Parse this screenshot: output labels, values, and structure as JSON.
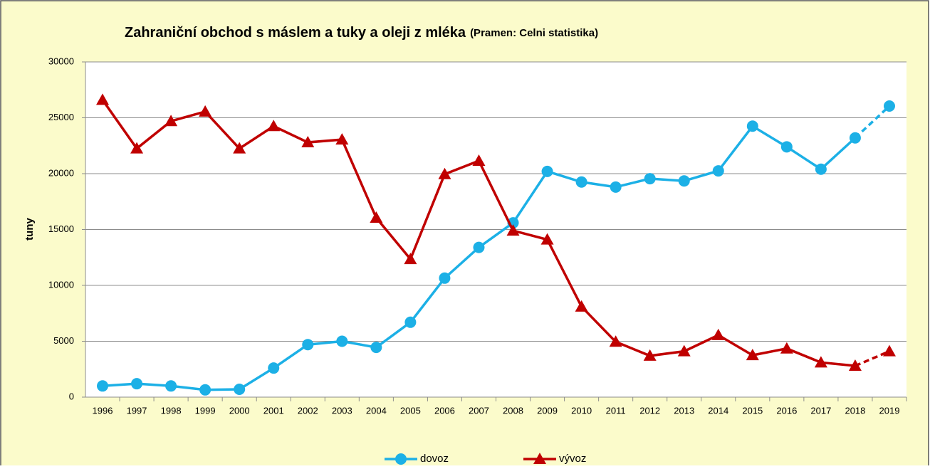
{
  "chart_data": {
    "type": "line",
    "title": "Zahraniční obchod s máslem a tuky a oleji z mléka",
    "subtitle": "(Pramen: Celni statistika)",
    "y_label": "tuny",
    "categories": [
      "1996",
      "1997",
      "1998",
      "1999",
      "2000",
      "2001",
      "2002",
      "2003",
      "2004",
      "2005",
      "2006",
      "2007",
      "2008",
      "2009",
      "2010",
      "2011",
      "2012",
      "2013",
      "2014",
      "2015",
      "2016",
      "2017",
      "2018",
      "2019"
    ],
    "series": [
      {
        "name": "dovoz",
        "color": "#1cb0e6",
        "marker": "circle",
        "values": [
          1000,
          1200,
          1000,
          650,
          700,
          2600,
          4700,
          5000,
          4450,
          6700,
          10650,
          13400,
          15600,
          20200,
          19250,
          18800,
          19550,
          19350,
          20250,
          24250,
          22400,
          20400,
          23200,
          26050
        ]
      },
      {
        "name": "vývoz",
        "color": "#c00000",
        "marker": "triangle",
        "values": [
          26600,
          22250,
          24700,
          25550,
          22250,
          24250,
          22800,
          23050,
          16050,
          12350,
          19950,
          21150,
          14900,
          14100,
          8100,
          4950,
          3700,
          4100,
          5550,
          3750,
          4350,
          3100,
          2800,
          4100
        ]
      }
    ],
    "last_segment_dashed": true,
    "ylim": [
      0,
      30000
    ],
    "yticks": [
      0,
      5000,
      10000,
      15000,
      20000,
      25000,
      30000
    ],
    "grid": true,
    "legend": "bottom"
  }
}
